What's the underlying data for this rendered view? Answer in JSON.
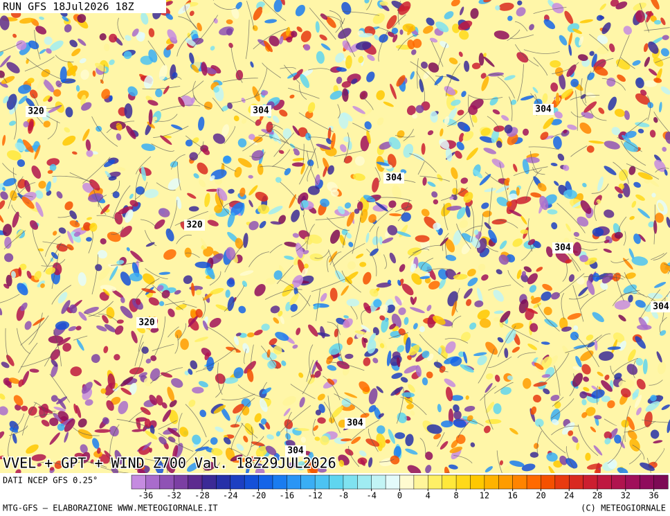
{
  "header": {
    "run": "RUN GFS 18Jul2026 18Z"
  },
  "title": "VVEL + GPT + WIND Z700 Val. 18Z29JUL2026",
  "source": "DATI NCEP GFS 0.25°",
  "footer": {
    "left": "MTG-GFS – ELABORAZIONE WWW.METEOGIORNALE.IT",
    "right": "(C) METEOGIORNALE"
  },
  "contour_labels": [
    "304",
    "304",
    "304",
    "304",
    "304",
    "304",
    "304",
    "320",
    "320",
    "320"
  ],
  "colorbar": {
    "range": [
      -38,
      38
    ],
    "ticks": [
      -36,
      -32,
      -28,
      -24,
      -20,
      -16,
      -12,
      -8,
      -4,
      0,
      4,
      8,
      12,
      16,
      20,
      24,
      28,
      32,
      36
    ],
    "colors": [
      "#c58be0",
      "#a96ccc",
      "#8f52b5",
      "#7b3fa3",
      "#5d2a8f",
      "#3b2a96",
      "#2630a8",
      "#1c3fc2",
      "#1450d8",
      "#1464e8",
      "#1a7cf0",
      "#2a95f5",
      "#3aaef5",
      "#4cc3f2",
      "#5fd5ef",
      "#7fe2f0",
      "#a0ecf2",
      "#c2f4f5",
      "#e4fbfb",
      "#fffbd0",
      "#fff59a",
      "#fff066",
      "#ffe83a",
      "#ffd91a",
      "#ffc800",
      "#ffb300",
      "#ff9c00",
      "#ff8400",
      "#ff6a00",
      "#f55000",
      "#e83a10",
      "#d92a20",
      "#cc1f30",
      "#bf1840",
      "#b0144e",
      "#a0105a",
      "#8f0c5c",
      "#7d0a55"
    ]
  }
}
